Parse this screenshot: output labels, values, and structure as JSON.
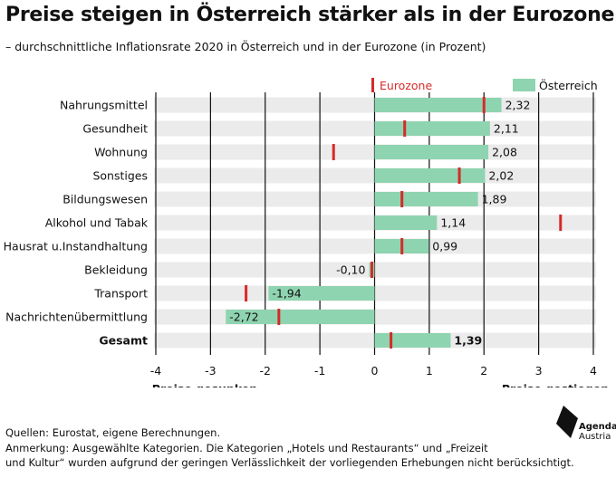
{
  "header": {
    "title": "Preise steigen in Österreich stärker als in der Eurozone",
    "subtitle": "– durchschnittliche Inflationsrate 2020 in Österreich und in der Eurozone (in Prozent)"
  },
  "chart_data": {
    "type": "bar",
    "orientation": "horizontal",
    "categories": [
      "Nahrungsmittel",
      "Gesundheit",
      "Wohnung",
      "Sonstiges",
      "Bildungswesen",
      "Alkohol und Tabak",
      "Hausrat u.Instandhaltung",
      "Bekleidung",
      "Transport",
      "Nachrichtenübermittlung",
      "Gesamt"
    ],
    "bold_categories": [
      "Gesamt"
    ],
    "series": [
      {
        "name": "Österreich",
        "type": "bar",
        "color": "#8fd4b0",
        "values": [
          2.32,
          2.11,
          2.08,
          2.02,
          1.89,
          1.14,
          0.99,
          -0.1,
          -1.94,
          -2.72,
          1.39
        ],
        "labels": [
          "2,32",
          "2,11",
          "2,08",
          "2,02",
          "1,89",
          "1,14",
          "0,99",
          "-0,10",
          "-1,94",
          "-2,72",
          "1,39"
        ]
      },
      {
        "name": "Eurozone",
        "type": "marker",
        "color": "#d62a2a",
        "values": [
          2.0,
          0.55,
          -0.75,
          1.55,
          0.5,
          3.4,
          0.5,
          -0.05,
          -2.35,
          -1.75,
          0.3
        ]
      }
    ],
    "xlim": [
      -4,
      4
    ],
    "xticks": [
      -4,
      -3,
      -2,
      -1,
      0,
      1,
      2,
      3,
      4
    ],
    "xtick_labels": [
      "-4",
      "-3",
      "-2",
      "-1",
      "0",
      "1",
      "2",
      "3",
      "4"
    ],
    "axis_annotations": {
      "left": "Preise gesunken",
      "right": "Preise gestiegen"
    },
    "grid": true,
    "legend_position": "top-right"
  },
  "footer": {
    "source": "Quellen: Eurostat, eigene Berechnungen.",
    "note_line1": "Anmerkung: Ausgewählte Kategorien. Die Kategorien „Hotels und Restaurants“ und „Freizeit",
    "note_line2": "und Kultur“ wurden aufgrund der geringen Verlässlichkeit der vorliegenden Erhebungen nicht berücksichtigt."
  },
  "logo": {
    "line1": "Agenda",
    "line2": "Austria"
  },
  "colors": {
    "stripe": "#ebebeb",
    "grid": "#111111"
  }
}
